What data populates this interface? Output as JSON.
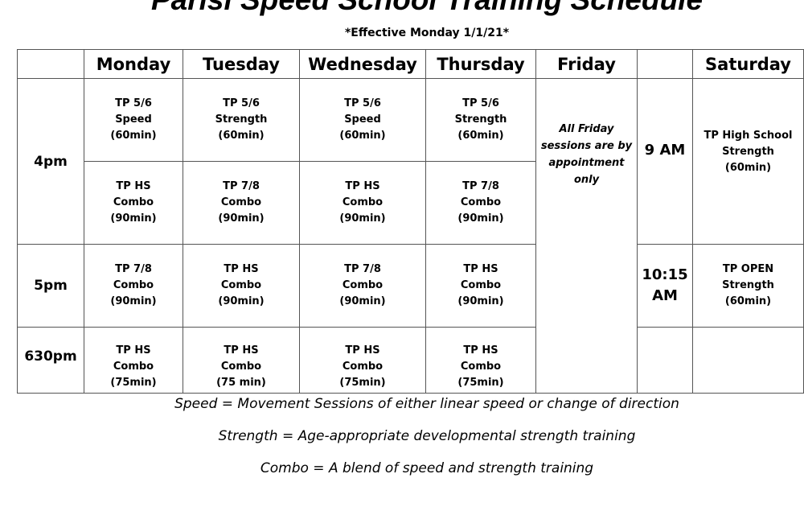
{
  "title": "Parisi Speed School Training Schedule",
  "subtitle": "*Effective Monday 1/1/21*",
  "days": [
    "Monday",
    "Tuesday",
    "Wednesday",
    "Thursday",
    "Friday",
    "Saturday"
  ],
  "times": [
    "4pm",
    "5pm",
    "630pm"
  ],
  "rows": [
    {
      "mon": [
        "TP 5/6",
        "Speed",
        "(60min)"
      ],
      "tue": [
        "TP 5/6",
        "Strength",
        "(60min)"
      ],
      "wed": [
        "TP 5/6",
        "Speed",
        "(60min)"
      ],
      "thu": [
        "TP 5/6",
        "Strength",
        "(60min)"
      ]
    },
    {
      "mon": [
        "TP HS",
        "Combo",
        "(90min)"
      ],
      "tue": [
        "TP 7/8",
        "Combo",
        "(90min)"
      ],
      "wed": [
        "TP HS",
        "Combo",
        "(90min)"
      ],
      "thu": [
        "TP 7/8",
        "Combo",
        "(90min)"
      ]
    },
    {
      "mon": [
        "TP 7/8",
        "Combo",
        "(90min)"
      ],
      "tue": [
        "TP HS",
        "Combo",
        "(90min)"
      ],
      "wed": [
        "TP 7/8",
        "Combo",
        "(90min)"
      ],
      "thu": [
        "TP HS",
        "Combo",
        "(90min)"
      ]
    },
    {
      "mon": [
        "TP HS",
        "Combo",
        "(75min)"
      ],
      "tue": [
        "TP HS",
        "Combo",
        "(75 min)"
      ],
      "wed": [
        "TP HS",
        "Combo",
        "(75min)"
      ],
      "thu": [
        "TP HS",
        "Combo",
        "(75min)"
      ]
    }
  ],
  "friday_note": [
    "All Friday",
    "sessions are by",
    "appointment",
    "only"
  ],
  "saturday": {
    "time1": "9 AM",
    "session1": [
      "TP High School",
      "Strength",
      "(60min)"
    ],
    "time2": [
      "10:15",
      "AM"
    ],
    "session2": [
      "TP OPEN",
      "Strength",
      "(60min)"
    ]
  },
  "legend": [
    "Speed = Movement Sessions of either linear speed or change of direction",
    "Strength = Age-appropriate developmental strength training",
    "Combo = A blend of speed and strength training"
  ]
}
